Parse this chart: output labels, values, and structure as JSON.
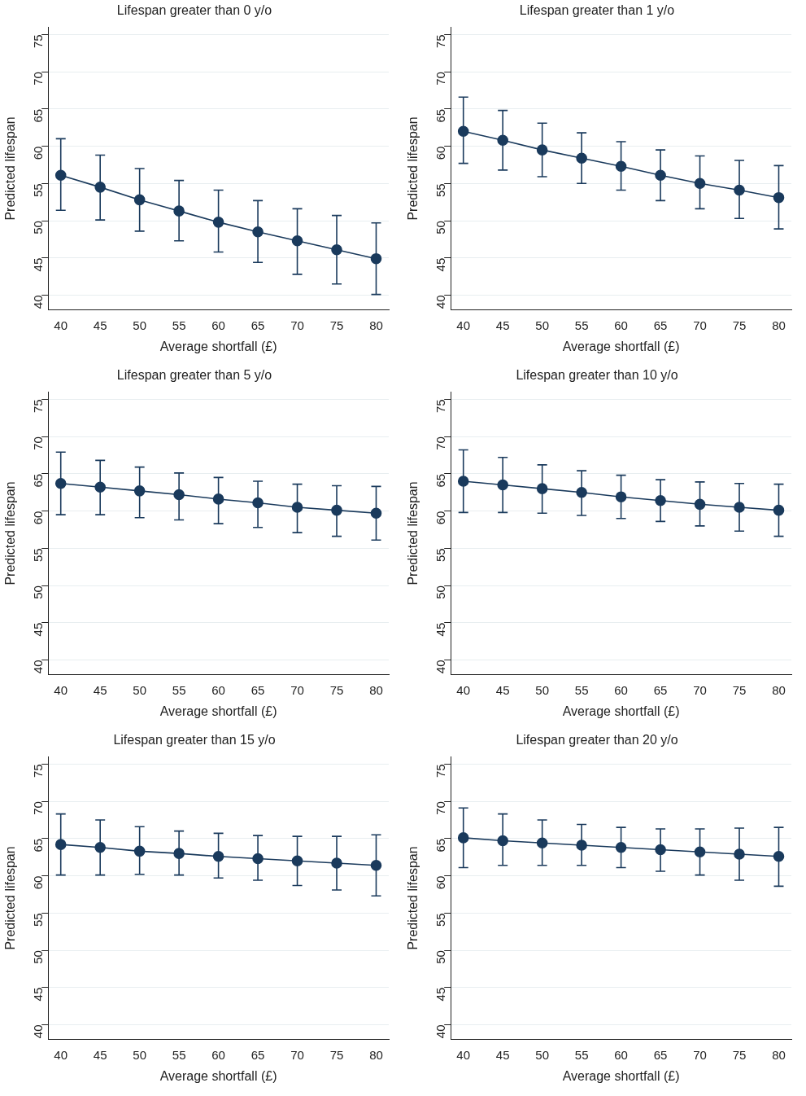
{
  "chart_data": [
    {
      "type": "line",
      "title": "Lifespan greater than 0 y/o",
      "xlabel": "Average shortfall (£)",
      "ylabel": "Predicted lifespan",
      "x": [
        40,
        45,
        50,
        55,
        60,
        65,
        70,
        75,
        80
      ],
      "values": [
        56.1,
        54.5,
        52.8,
        51.3,
        49.8,
        48.5,
        47.3,
        46.1,
        44.9
      ],
      "errors": [
        [
          51.4,
          61.0
        ],
        [
          50.1,
          58.8
        ],
        [
          48.6,
          57.0
        ],
        [
          47.3,
          55.4
        ],
        [
          45.8,
          54.1
        ],
        [
          44.4,
          52.7
        ],
        [
          42.8,
          51.6
        ],
        [
          41.5,
          50.7
        ],
        [
          40.1,
          49.7
        ]
      ],
      "color": "#1a3a5c",
      "marker": "circle",
      "xlim": [
        38.4,
        81.6
      ],
      "ylim": [
        38,
        76
      ],
      "xticks": [
        40,
        45,
        50,
        55,
        60,
        65,
        70,
        75,
        80
      ],
      "yticks": [
        40,
        45,
        50,
        55,
        60,
        65,
        70,
        75
      ],
      "grid": "y"
    },
    {
      "type": "line",
      "title": "Lifespan greater than 1 y/o",
      "xlabel": "Average shortfall (£)",
      "ylabel": "Predicted lifespan",
      "x": [
        40,
        45,
        50,
        55,
        60,
        65,
        70,
        75,
        80
      ],
      "values": [
        62.0,
        60.8,
        59.5,
        58.4,
        57.3,
        56.1,
        55.0,
        54.1,
        53.1
      ],
      "errors": [
        [
          57.7,
          66.6
        ],
        [
          56.8,
          64.8
        ],
        [
          55.9,
          63.1
        ],
        [
          55.0,
          61.8
        ],
        [
          54.1,
          60.6
        ],
        [
          52.7,
          59.5
        ],
        [
          51.6,
          58.7
        ],
        [
          50.3,
          58.1
        ],
        [
          48.9,
          57.4
        ]
      ],
      "color": "#1a3a5c",
      "marker": "circle",
      "xlim": [
        38.4,
        81.6
      ],
      "ylim": [
        38,
        76
      ],
      "xticks": [
        40,
        45,
        50,
        55,
        60,
        65,
        70,
        75,
        80
      ],
      "yticks": [
        40,
        45,
        50,
        55,
        60,
        65,
        70,
        75
      ],
      "grid": "y"
    },
    {
      "type": "line",
      "title": "Lifespan greater than 5 y/o",
      "xlabel": "Average shortfall (£)",
      "ylabel": "Predicted lifespan",
      "x": [
        40,
        45,
        50,
        55,
        60,
        65,
        70,
        75,
        80
      ],
      "values": [
        63.7,
        63.2,
        62.7,
        62.2,
        61.6,
        61.1,
        60.5,
        60.1,
        59.7
      ],
      "errors": [
        [
          59.5,
          67.9
        ],
        [
          59.5,
          66.8
        ],
        [
          59.1,
          65.9
        ],
        [
          58.8,
          65.1
        ],
        [
          58.3,
          64.5
        ],
        [
          57.8,
          64.0
        ],
        [
          57.1,
          63.6
        ],
        [
          56.6,
          63.4
        ],
        [
          56.1,
          63.3
        ]
      ],
      "color": "#1a3a5c",
      "marker": "circle",
      "xlim": [
        38.4,
        81.6
      ],
      "ylim": [
        38,
        76
      ],
      "xticks": [
        40,
        45,
        50,
        55,
        60,
        65,
        70,
        75,
        80
      ],
      "yticks": [
        40,
        45,
        50,
        55,
        60,
        65,
        70,
        75
      ],
      "grid": "y"
    },
    {
      "type": "line",
      "title": "Lifespan greater than 10 y/o",
      "xlabel": "Average shortfall (£)",
      "ylabel": "Predicted lifespan",
      "x": [
        40,
        45,
        50,
        55,
        60,
        65,
        70,
        75,
        80
      ],
      "values": [
        64.0,
        63.5,
        63.0,
        62.5,
        61.9,
        61.4,
        60.9,
        60.5,
        60.1
      ],
      "errors": [
        [
          59.8,
          68.2
        ],
        [
          59.8,
          67.2
        ],
        [
          59.7,
          66.2
        ],
        [
          59.4,
          65.4
        ],
        [
          59.0,
          64.8
        ],
        [
          58.6,
          64.2
        ],
        [
          58.0,
          63.9
        ],
        [
          57.3,
          63.7
        ],
        [
          56.6,
          63.6
        ]
      ],
      "color": "#1a3a5c",
      "marker": "circle",
      "xlim": [
        38.4,
        81.6
      ],
      "ylim": [
        38,
        76
      ],
      "xticks": [
        40,
        45,
        50,
        55,
        60,
        65,
        70,
        75,
        80
      ],
      "yticks": [
        40,
        45,
        50,
        55,
        60,
        65,
        70,
        75
      ],
      "grid": "y"
    },
    {
      "type": "line",
      "title": "Lifespan greater than 15 y/o",
      "xlabel": "Average shortfall (£)",
      "ylabel": "Predicted lifespan",
      "x": [
        40,
        45,
        50,
        55,
        60,
        65,
        70,
        75,
        80
      ],
      "values": [
        64.2,
        63.8,
        63.3,
        63.0,
        62.6,
        62.3,
        62.0,
        61.7,
        61.4
      ],
      "errors": [
        [
          60.1,
          68.3
        ],
        [
          60.1,
          67.5
        ],
        [
          60.2,
          66.6
        ],
        [
          60.1,
          66.0
        ],
        [
          59.7,
          65.7
        ],
        [
          59.4,
          65.4
        ],
        [
          58.7,
          65.3
        ],
        [
          58.1,
          65.3
        ],
        [
          57.3,
          65.5
        ]
      ],
      "color": "#1a3a5c",
      "marker": "circle",
      "xlim": [
        38.4,
        81.6
      ],
      "ylim": [
        38,
        76
      ],
      "xticks": [
        40,
        45,
        50,
        55,
        60,
        65,
        70,
        75,
        80
      ],
      "yticks": [
        40,
        45,
        50,
        55,
        60,
        65,
        70,
        75
      ],
      "grid": "y"
    },
    {
      "type": "line",
      "title": "Lifespan greater than 20 y/o",
      "xlabel": "Average shortfall (£)",
      "ylabel": "Predicted lifespan",
      "x": [
        40,
        45,
        50,
        55,
        60,
        65,
        70,
        75,
        80
      ],
      "values": [
        65.1,
        64.7,
        64.4,
        64.1,
        63.8,
        63.5,
        63.2,
        62.9,
        62.6
      ],
      "errors": [
        [
          61.1,
          69.1
        ],
        [
          61.4,
          68.3
        ],
        [
          61.4,
          67.5
        ],
        [
          61.4,
          66.9
        ],
        [
          61.1,
          66.5
        ],
        [
          60.6,
          66.3
        ],
        [
          60.1,
          66.3
        ],
        [
          59.4,
          66.4
        ],
        [
          58.6,
          66.5
        ]
      ],
      "color": "#1a3a5c",
      "marker": "circle",
      "xlim": [
        38.4,
        81.6
      ],
      "ylim": [
        38,
        76
      ],
      "xticks": [
        40,
        45,
        50,
        55,
        60,
        65,
        70,
        75,
        80
      ],
      "yticks": [
        40,
        45,
        50,
        55,
        60,
        65,
        70,
        75
      ],
      "grid": "y"
    }
  ]
}
